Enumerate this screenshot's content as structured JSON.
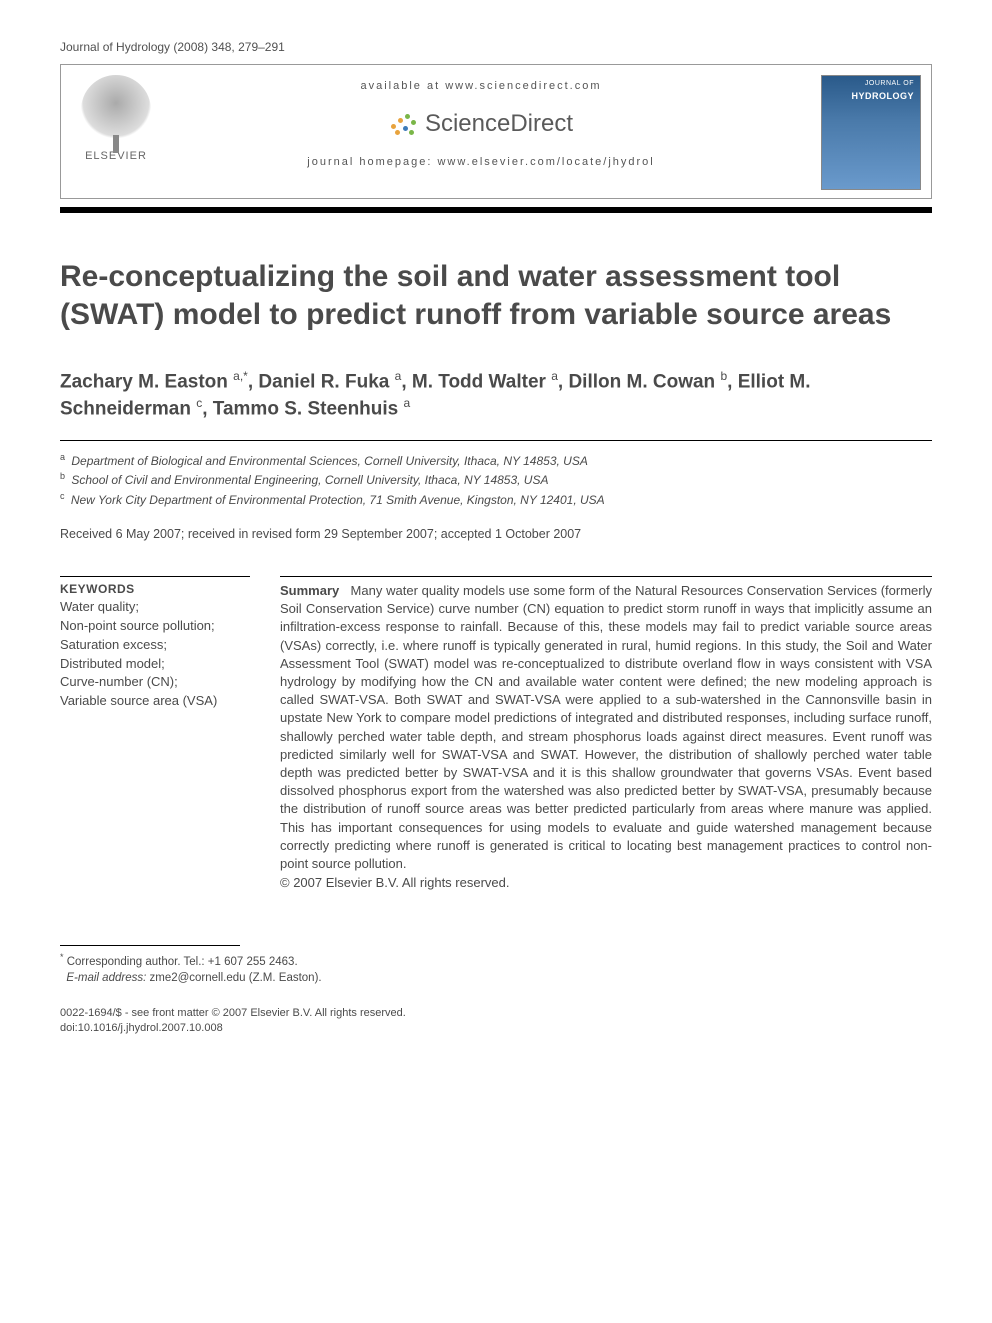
{
  "journal_header": "Journal of Hydrology (2008) 348, 279–291",
  "banner": {
    "available": "available at www.sciencedirect.com",
    "brand": "ScienceDirect",
    "homepage": "journal homepage: www.elsevier.com/locate/jhydrol",
    "publisher": "ELSEVIER",
    "cover_line1": "JOURNAL OF",
    "cover_line2": "HYDROLOGY"
  },
  "title": "Re-conceptualizing the soil and water assessment tool (SWAT) model to predict runoff from variable source areas",
  "authors_html": "Zachary M. Easton <sup>a,*</sup>, Daniel R. Fuka <sup>a</sup>, M. Todd Walter <sup>a</sup>, Dillon M. Cowan <sup>b</sup>, Elliot M. Schneiderman <sup>c</sup>, Tammo S. Steenhuis <sup>a</sup>",
  "affiliations": [
    {
      "sup": "a",
      "text": "Department of Biological and Environmental Sciences, Cornell University, Ithaca, NY 14853, USA"
    },
    {
      "sup": "b",
      "text": "School of Civil and Environmental Engineering, Cornell University, Ithaca, NY 14853, USA"
    },
    {
      "sup": "c",
      "text": "New York City Department of Environmental Protection, 71 Smith Avenue, Kingston, NY 12401, USA"
    }
  ],
  "history": "Received 6 May 2007; received in revised form 29 September 2007; accepted 1 October 2007",
  "keywords_heading": "KEYWORDS",
  "keywords": "Water quality;\nNon-point source pollution;\nSaturation excess;\nDistributed model;\nCurve-number (CN);\nVariable source area (VSA)",
  "summary_label": "Summary",
  "summary": "Many water quality models use some form of the Natural Resources Conservation Services (formerly Soil Conservation Service) curve number (CN) equation to predict storm runoff in ways that implicitly assume an infiltration-excess response to rainfall. Because of this, these models may fail to predict variable source areas (VSAs) correctly, i.e. where runoff is typically generated in rural, humid regions. In this study, the Soil and Water Assessment Tool (SWAT) model was re-conceptualized to distribute overland flow in ways consistent with VSA hydrology by modifying how the CN and available water content were defined; the new modeling approach is called SWAT-VSA. Both SWAT and SWAT-VSA were applied to a sub-watershed in the Cannonsville basin in upstate New York to compare model predictions of integrated and distributed responses, including surface runoff, shallowly perched water table depth, and stream phosphorus loads against direct measures. Event runoff was predicted similarly well for SWAT-VSA and SWAT. However, the distribution of shallowly perched water table depth was predicted better by SWAT-VSA and it is this shallow groundwater that governs VSAs. Event based dissolved phosphorus export from the watershed was also predicted better by SWAT-VSA, presumably because the distribution of runoff source areas was better predicted particularly from areas where manure was applied. This has important consequences for using models to evaluate and guide watershed management because correctly predicting where runoff is generated is critical to locating best management practices to control non-point source pollution.",
  "copyright": "© 2007 Elsevier B.V. All rights reserved.",
  "corresponding": {
    "line1": "Corresponding author. Tel.: +1 607 255 2463.",
    "email_label": "E-mail address:",
    "email": "zme2@cornell.edu",
    "email_suffix": "(Z.M. Easton)."
  },
  "bottom": {
    "line1": "0022-1694/$ - see front matter © 2007 Elsevier B.V. All rights reserved.",
    "line2": "doi:10.1016/j.jhydrol.2007.10.008"
  },
  "colors": {
    "text": "#4a4a4a",
    "rule": "#000000",
    "sd_orange": "#e8a33d",
    "sd_green": "#7ab648",
    "sd_blue": "#3d7bb8"
  }
}
